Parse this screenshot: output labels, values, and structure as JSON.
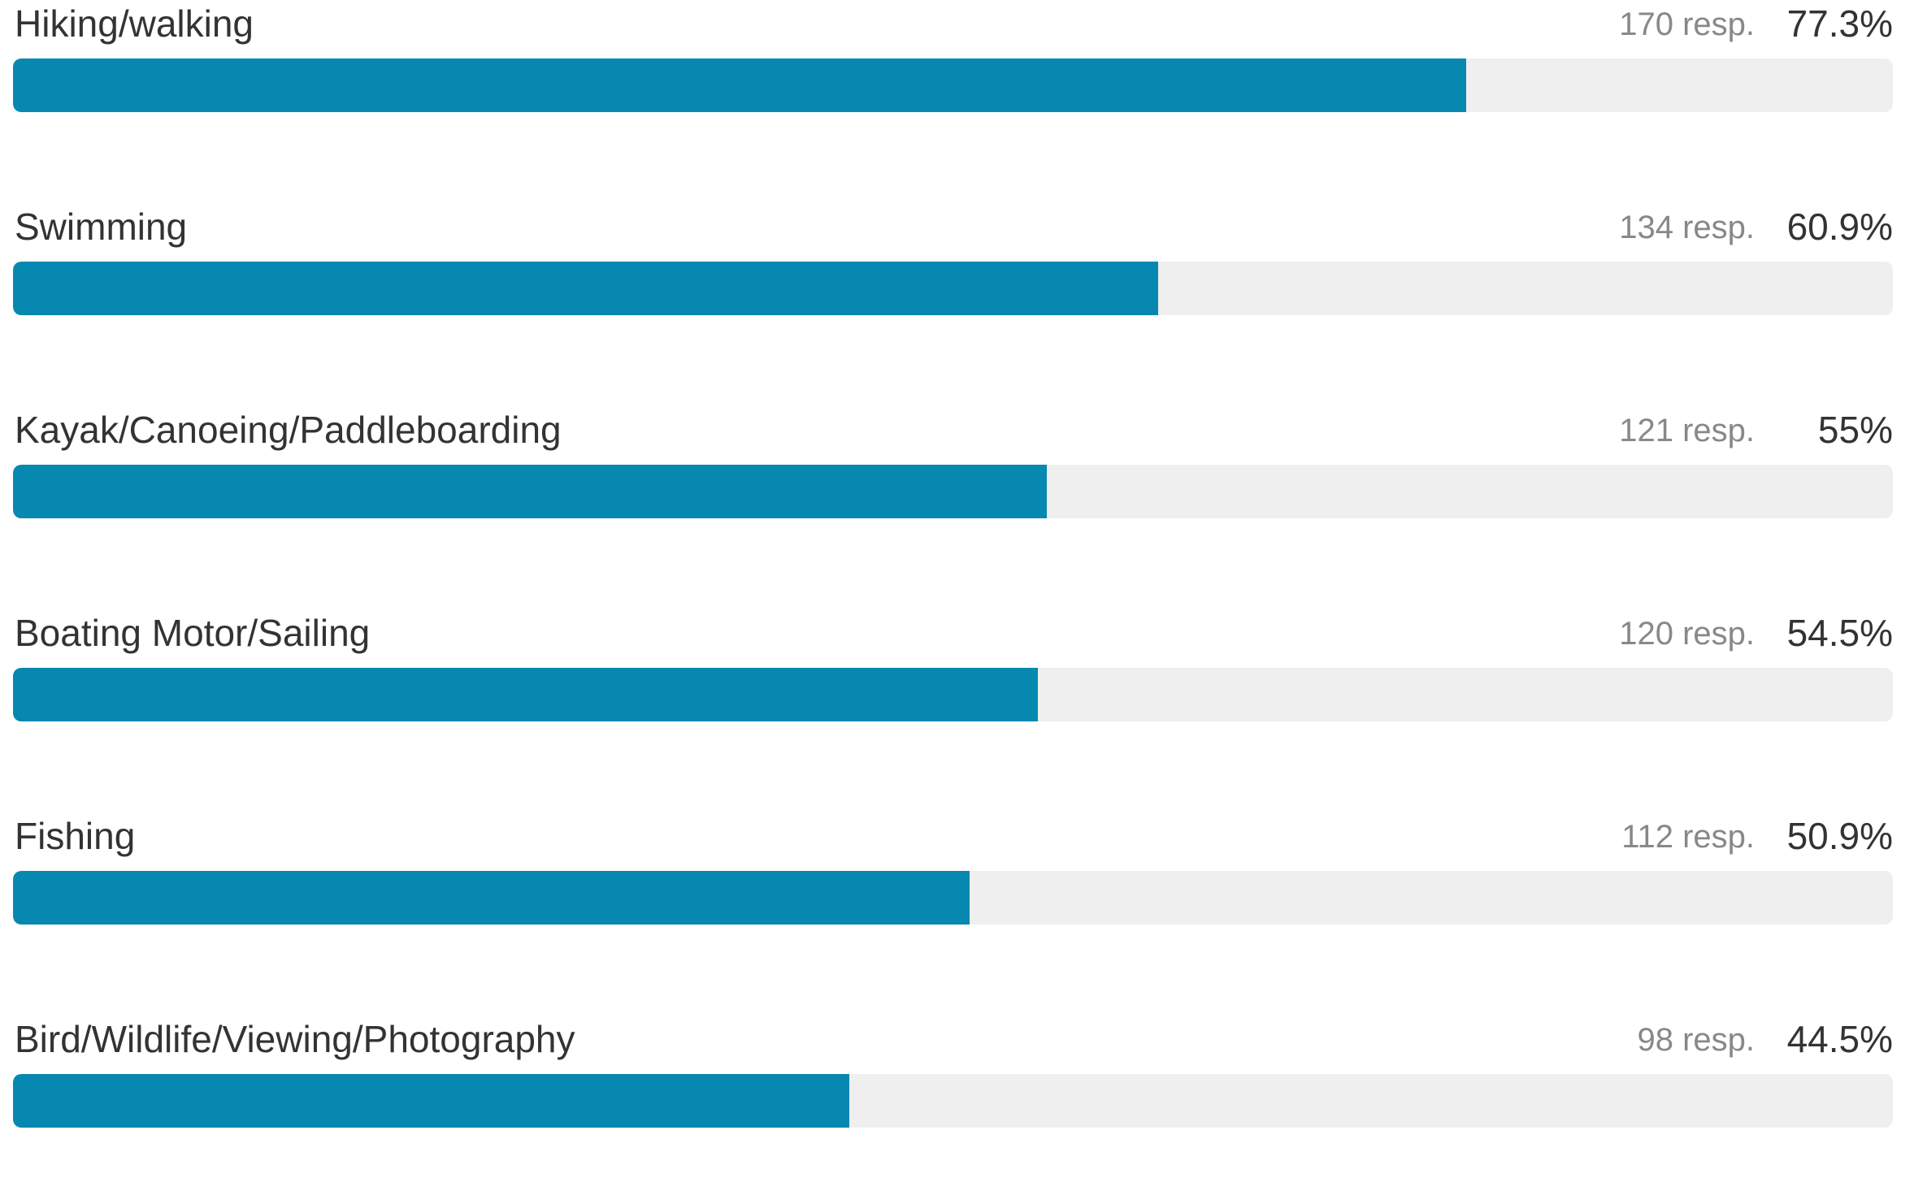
{
  "chart_data": {
    "type": "bar",
    "orientation": "horizontal",
    "categories": [
      "Hiking/walking",
      "Swimming",
      "Kayak/Canoeing/Paddleboarding",
      "Boating Motor/Sailing",
      "Fishing",
      "Bird/Wildlife/Viewing/Photography"
    ],
    "values": [
      77.3,
      60.9,
      55,
      54.5,
      50.9,
      44.5
    ],
    "responses": [
      170,
      134,
      121,
      120,
      112,
      98
    ],
    "xlim": [
      0,
      100
    ],
    "grid": false,
    "legend": "none",
    "bar_color": "#0788b0",
    "track_color": "#efefef"
  },
  "rows": [
    {
      "label": "Hiking/walking",
      "responses": "170 resp.",
      "percent": "77.3%",
      "value": 77.3
    },
    {
      "label": "Swimming",
      "responses": "134 resp.",
      "percent": "60.9%",
      "value": 60.9
    },
    {
      "label": "Kayak/Canoeing/Paddleboarding",
      "responses": "121 resp.",
      "percent": "55%",
      "value": 55
    },
    {
      "label": "Boating Motor/Sailing",
      "responses": "120 resp.",
      "percent": "54.5%",
      "value": 54.5
    },
    {
      "label": "Fishing",
      "responses": "112 resp.",
      "percent": "50.9%",
      "value": 50.9
    },
    {
      "label": "Bird/Wildlife/Viewing/Photography",
      "responses": "98 resp.",
      "percent": "44.5%",
      "value": 44.5
    }
  ],
  "colors": {
    "bar_fill": "#0788b0",
    "bar_track": "#efefef",
    "label_text": "#333333",
    "resp_text": "#888888"
  }
}
